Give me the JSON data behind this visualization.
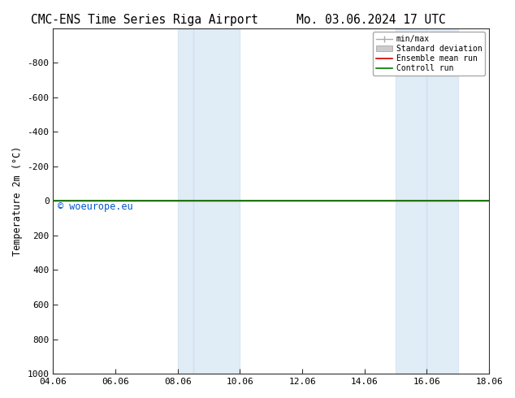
{
  "title_left": "CMC-ENS Time Series Riga Airport",
  "title_right": "Mo. 03.06.2024 17 UTC",
  "ylabel": "Temperature 2m (°C)",
  "ylim_bottom": 1000,
  "ylim_top": -1000,
  "yticks": [
    -800,
    -600,
    -400,
    -200,
    0,
    200,
    400,
    600,
    800,
    1000
  ],
  "xtick_labels": [
    "04.06",
    "06.06",
    "08.06",
    "10.06",
    "12.06",
    "14.06",
    "16.06",
    "18.06"
  ],
  "xtick_positions": [
    0,
    2,
    4,
    6,
    8,
    10,
    12,
    14
  ],
  "shaded_bands": [
    [
      4,
      4.5
    ],
    [
      4.5,
      6
    ],
    [
      11,
      12
    ],
    [
      12,
      13
    ]
  ],
  "control_run_y": 0,
  "watermark": "© woeurope.eu",
  "watermark_color": "#0055cc",
  "bg_color": "#ffffff",
  "plot_bg_color": "#ffffff",
  "band_color": "#cce0f0",
  "band_alpha": 0.6,
  "control_run_color": "#007700",
  "ensemble_mean_color": "#cc0000",
  "minmax_color": "#aaaaaa",
  "std_color": "#cccccc",
  "legend_labels": [
    "min/max",
    "Standard deviation",
    "Ensemble mean run",
    "Controll run"
  ],
  "title_fontsize": 10.5,
  "axis_fontsize": 8.5,
  "tick_fontsize": 8
}
